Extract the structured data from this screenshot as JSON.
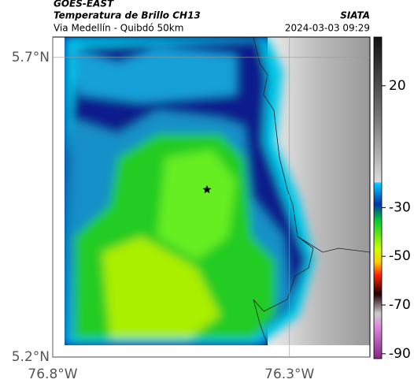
{
  "header": {
    "source": "GOES-EAST",
    "product": "Temperatura de Brillo CH13",
    "route": "Via Medellín - Quibdó 50km",
    "org": "SIATA",
    "datetime": "2024-03-03 09:29"
  },
  "map": {
    "latlim": [
      5.2,
      5.734
    ],
    "lonlim": [
      -76.8,
      -76.13
    ],
    "lat_ticks": [
      {
        "value": 5.7,
        "label": "5.7°N"
      },
      {
        "value": 5.2,
        "label": "5.2°N"
      }
    ],
    "lon_ticks": [
      {
        "value": -76.8,
        "label": "76.8°W"
      },
      {
        "value": -76.3,
        "label": "76.3°W"
      }
    ]
  },
  "colorbar": {
    "lim": [
      -92,
      40
    ],
    "ticks": [
      20,
      -30,
      -50,
      -70,
      -90
    ]
  }
}
